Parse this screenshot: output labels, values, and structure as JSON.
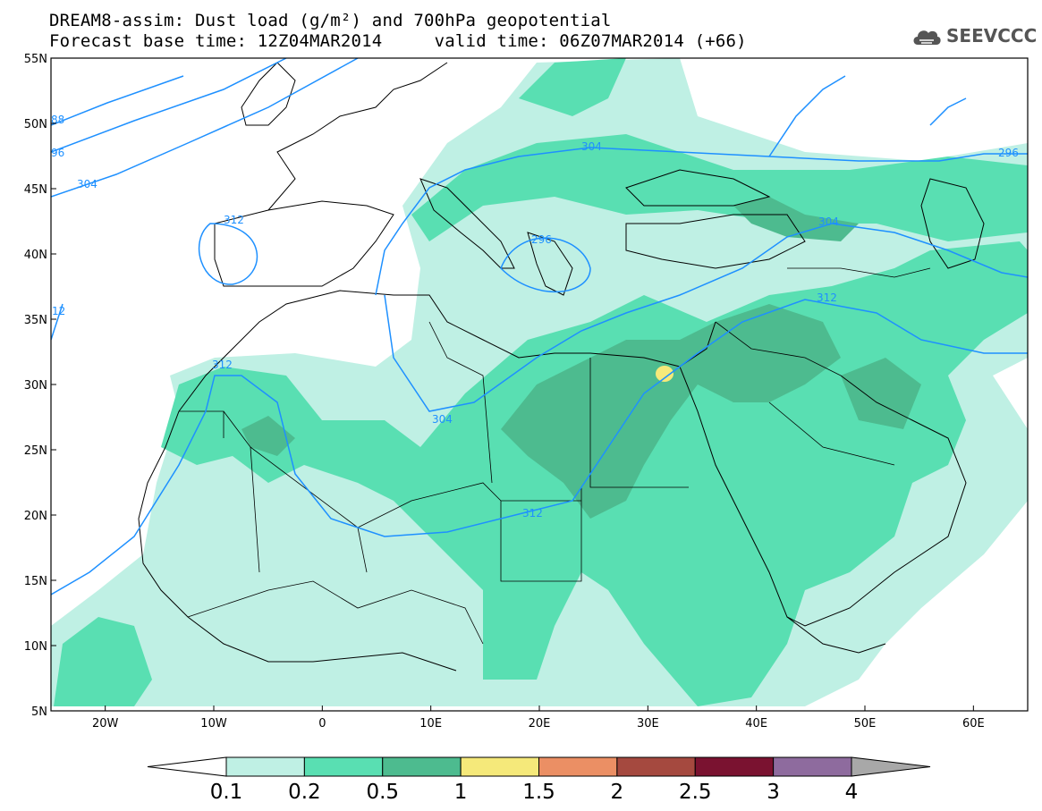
{
  "title": {
    "line1": "DREAM8-assim: Dust load (g/m²) and 700hPa geopotential",
    "line2": "Forecast base time: 12Z04MAR2014     valid time: 06Z07MAR2014 (+66)"
  },
  "logo": {
    "text": "SEEVCCC",
    "icon": "cloud-icon"
  },
  "axes": {
    "x_ticks": [
      {
        "lon": -20,
        "label": "20W"
      },
      {
        "lon": -10,
        "label": "10W"
      },
      {
        "lon": 0,
        "label": "0"
      },
      {
        "lon": 10,
        "label": "10E"
      },
      {
        "lon": 20,
        "label": "20E"
      },
      {
        "lon": 30,
        "label": "30E"
      },
      {
        "lon": 40,
        "label": "40E"
      },
      {
        "lon": 50,
        "label": "50E"
      },
      {
        "lon": 60,
        "label": "60E"
      }
    ],
    "y_ticks": [
      {
        "lat": 55,
        "label": "55N"
      },
      {
        "lat": 50,
        "label": "50N"
      },
      {
        "lat": 45,
        "label": "45N"
      },
      {
        "lat": 40,
        "label": "40N"
      },
      {
        "lat": 35,
        "label": "35N"
      },
      {
        "lat": 30,
        "label": "30N"
      },
      {
        "lat": 25,
        "label": "25N"
      },
      {
        "lat": 20,
        "label": "20N"
      },
      {
        "lat": 15,
        "label": "15N"
      },
      {
        "lat": 10,
        "label": "10N"
      },
      {
        "lat": 5,
        "label": "5N"
      }
    ],
    "lon_range": [
      -25,
      65
    ],
    "lat_range": [
      5,
      55
    ]
  },
  "contour_labels": [
    "88",
    "96",
    "304",
    "312",
    "296",
    "304",
    "304",
    "312",
    "312",
    "312",
    "304",
    "296",
    "12"
  ],
  "colorbar": {
    "colors": [
      "#ffffff",
      "#bff0e4",
      "#59dfb2",
      "#4dbb8f",
      "#f5e97a",
      "#eb8f64",
      "#a5493f",
      "#7a1230",
      "#8e6b9e",
      "#a8a8a8"
    ],
    "labels": [
      "0.1",
      "0.2",
      "0.5",
      "1",
      "1.5",
      "2",
      "2.5",
      "3",
      "4"
    ]
  }
}
